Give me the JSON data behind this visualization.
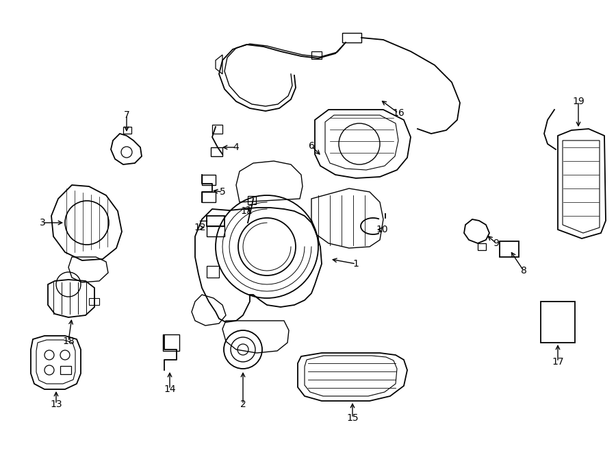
{
  "background_color": "#ffffff",
  "line_color": "#000000",
  "text_color": "#000000",
  "fig_width": 9.0,
  "fig_height": 6.61,
  "dpi": 100
}
